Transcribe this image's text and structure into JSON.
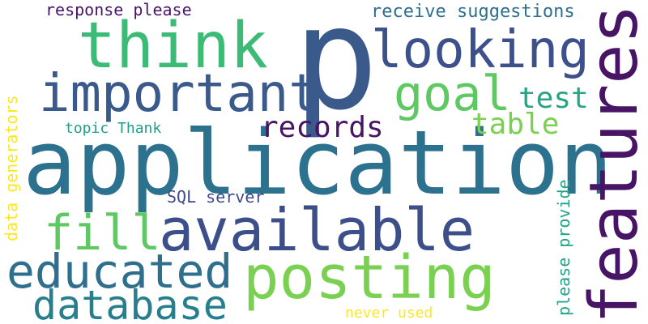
{
  "words": [
    {
      "text": "application",
      "color": "#2c718e"
    },
    {
      "text": "p",
      "color": "#3b5a8c"
    },
    {
      "text": "features",
      "color": "#471466"
    },
    {
      "text": "think",
      "color": "#3bbb75"
    },
    {
      "text": "looking",
      "color": "#3c508b"
    },
    {
      "text": "important",
      "color": "#3b5a8c"
    },
    {
      "text": "available",
      "color": "#3c4f8a"
    },
    {
      "text": "posting",
      "color": "#7ad151"
    },
    {
      "text": "educated",
      "color": "#2e6f8e"
    },
    {
      "text": "database",
      "color": "#277f8e"
    },
    {
      "text": "goal",
      "color": "#5ec962"
    },
    {
      "text": "fill",
      "color": "#5ec962"
    },
    {
      "text": "records",
      "color": "#471466"
    },
    {
      "text": "table",
      "color": "#7ad151"
    },
    {
      "text": "test",
      "color": "#2aa383"
    },
    {
      "text": "receive suggestions",
      "color": "#2e6f8e"
    },
    {
      "text": "response please",
      "color": "#471466"
    },
    {
      "text": "topic Thank",
      "color": "#1f9e89"
    },
    {
      "text": "SQL server",
      "color": "#3e4a89"
    },
    {
      "text": "data generators",
      "color": "#fde725"
    },
    {
      "text": "please provide",
      "color": "#20a486"
    },
    {
      "text": "never used",
      "color": "#fde725"
    }
  ]
}
